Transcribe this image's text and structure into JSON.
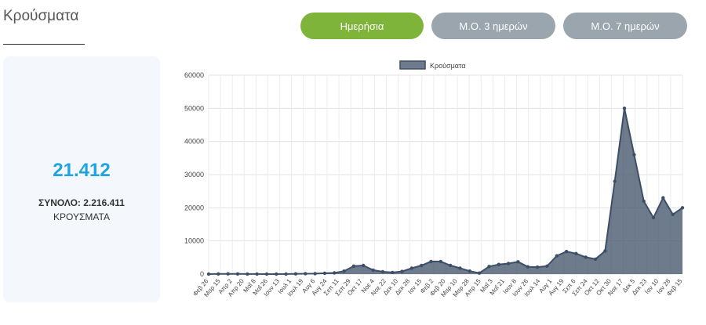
{
  "header": {
    "title": "Κρούσματα"
  },
  "tabs": [
    {
      "label": "Ημερήσια",
      "active": true
    },
    {
      "label": "Μ.Ο. 3 ημερών",
      "active": false
    },
    {
      "label": "Μ.Ο. 7 ημερών",
      "active": false
    }
  ],
  "colors": {
    "accent": "#7fb43a",
    "tab_inactive": "#9aa5ad",
    "stat_value": "#1fa4e0",
    "series": "#3d4f66"
  },
  "stats": {
    "today": "21.412",
    "total_label": "ΣΥΝΟΛΟ: 2.216.411",
    "unit_label": "ΚΡΟΥΣΜΑΤΑ"
  },
  "chart_data": {
    "type": "area",
    "legend": [
      "Κρούσματα"
    ],
    "legend_position": "top",
    "grid": true,
    "ylim": [
      0,
      60000
    ],
    "yticks": [
      0,
      10000,
      20000,
      30000,
      40000,
      50000,
      60000
    ],
    "xticks": [
      "Φεβ 26",
      "Μαρ 15",
      "Απρ 2",
      "Απρ 20",
      "Μαΐ 8",
      "Μαΐ 26",
      "Ιουν 13",
      "Ιουλ 1",
      "Ιουλ 19",
      "Αυγ 6",
      "Αυγ 24",
      "Σεπ 11",
      "Σεπ 29",
      "Οκτ 17",
      "Νοε 4",
      "Νοε 22",
      "Δεκ 10",
      "Δεκ 28",
      "Ιαν 15",
      "Φεβ 2",
      "Φεβ 20",
      "Μαρ 10",
      "Μαρ 28",
      "Απρ 15",
      "Μαΐ 3",
      "Μαΐ 21",
      "Ιουν 8",
      "Ιουν 26",
      "Ιουλ 14",
      "Αυγ 1",
      "Αυγ 19",
      "Σεπ 6",
      "Σεπ 24",
      "Οκτ 12",
      "Οκτ 30",
      "Νοε 17",
      "Δεκ 5",
      "Δεκ 23",
      "Ιαν 10",
      "Ιαν 28",
      "Φεβ 15"
    ],
    "series": [
      {
        "name": "Κρούσματα",
        "values": [
          0,
          50,
          80,
          40,
          30,
          20,
          10,
          10,
          30,
          60,
          120,
          150,
          250,
          350,
          900,
          2400,
          2600,
          1200,
          700,
          500,
          800,
          1800,
          2600,
          3800,
          3800,
          2600,
          1800,
          900,
          300,
          2300,
          2900,
          3200,
          3700,
          2200,
          2100,
          2400,
          5500,
          6800,
          6200,
          5100,
          4500,
          7000,
          28000,
          50000,
          36000,
          22000,
          17000,
          23000,
          18000,
          20000
        ]
      }
    ]
  }
}
